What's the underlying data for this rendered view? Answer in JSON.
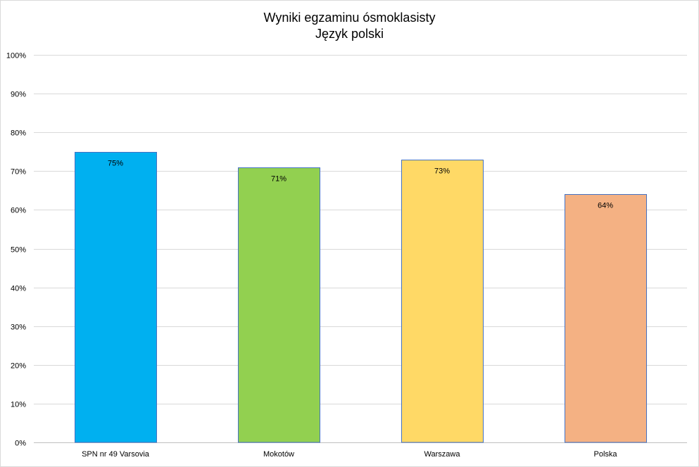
{
  "chart_data": {
    "type": "bar",
    "title": "Wyniki egzaminu ósmoklasisty",
    "subtitle": "Język polski",
    "categories": [
      "SPN nr 49 Varsovia",
      "Mokotów",
      "Warszawa",
      "Polska"
    ],
    "values": [
      75,
      71,
      73,
      64
    ],
    "data_labels": [
      "75%",
      "71%",
      "73%",
      "64%"
    ],
    "colors": [
      "#00b0f0",
      "#92d050",
      "#ffd966",
      "#f4b183"
    ],
    "bar_border_color": "#4472c4",
    "ylim": [
      0,
      100
    ],
    "yticks": [
      0,
      10,
      20,
      30,
      40,
      50,
      60,
      70,
      80,
      90,
      100
    ],
    "ytick_labels": [
      "0%",
      "10%",
      "20%",
      "30%",
      "40%",
      "50%",
      "60%",
      "70%",
      "80%",
      "90%",
      "100%"
    ],
    "grid": true,
    "legend": "none",
    "xlabel": "",
    "ylabel": ""
  }
}
